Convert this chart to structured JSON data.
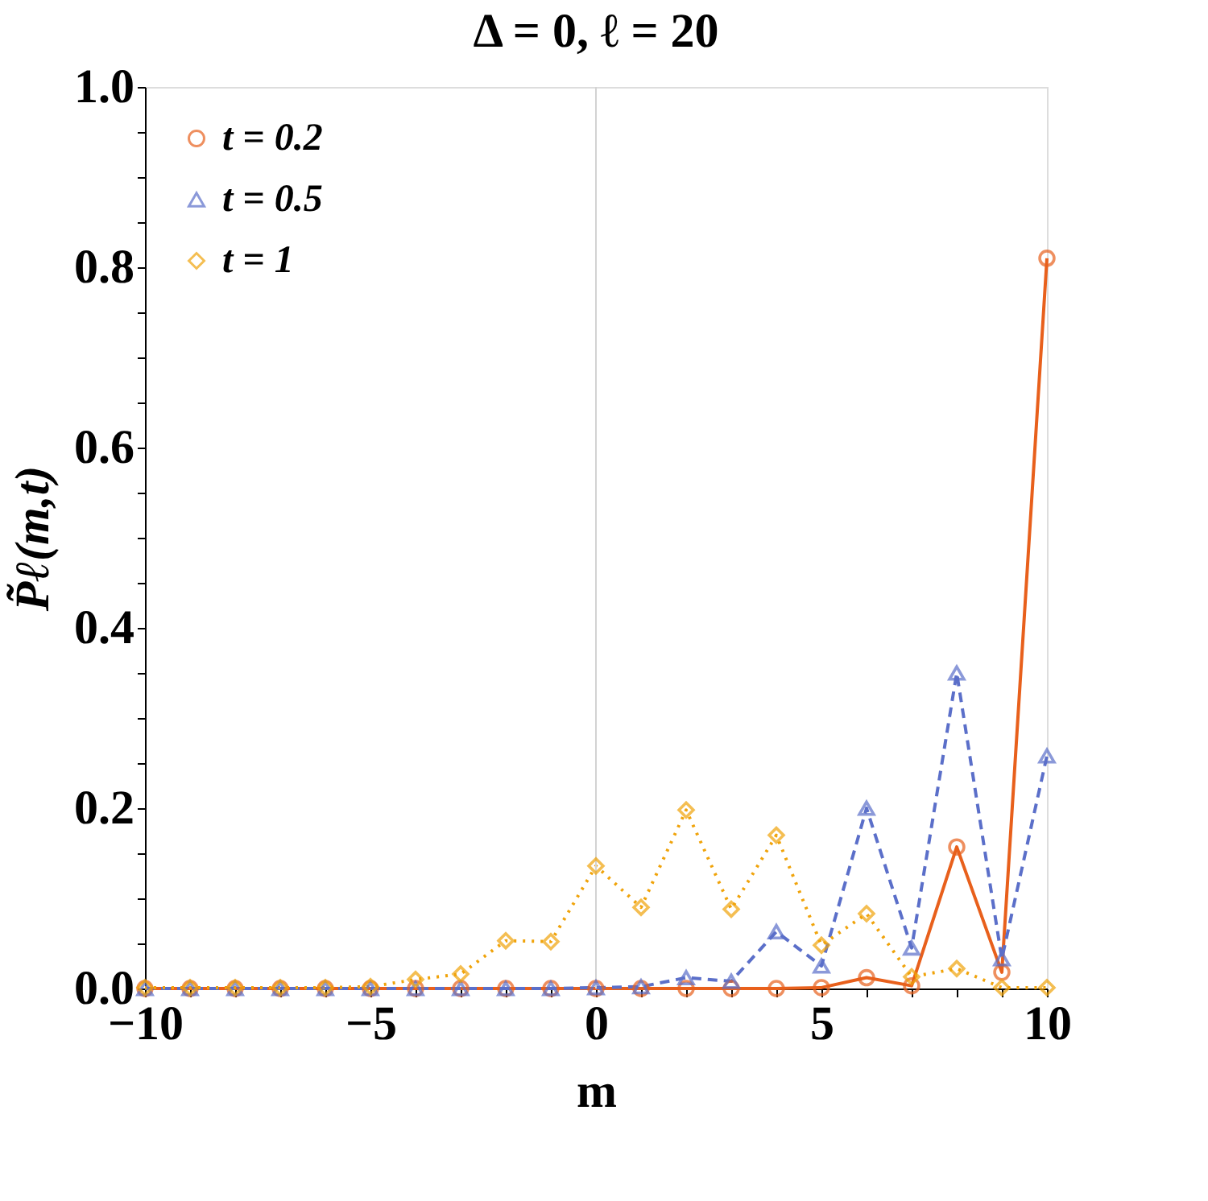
{
  "chart_data": {
    "type": "line",
    "title": "Δ = 0,   ℓ = 20",
    "xlabel": "m",
    "ylabel": "P̃ℓ(m,t)",
    "x": [
      -10,
      -9,
      -8,
      -7,
      -6,
      -5,
      -4,
      -3,
      -2,
      -1,
      0,
      1,
      2,
      3,
      4,
      5,
      6,
      7,
      8,
      9,
      10
    ],
    "series": [
      {
        "name": "t = 0.2",
        "color": "#e8601c",
        "marker": "circle",
        "line_style": "solid",
        "values": [
          0,
          0,
          0,
          0,
          0,
          0,
          0,
          0,
          0,
          0,
          0,
          0,
          0,
          0,
          0,
          0.001,
          0.012,
          0.003,
          0.157,
          0.018,
          0.81
        ]
      },
      {
        "name": "t = 0.5",
        "color": "#5b6fc9",
        "marker": "triangle",
        "line_style": "dashed",
        "values": [
          0,
          0,
          0,
          0,
          0,
          0,
          0,
          0,
          0,
          0,
          0.001,
          0.002,
          0.012,
          0.008,
          0.063,
          0.025,
          0.2,
          0.045,
          0.35,
          0.033,
          0.258
        ]
      },
      {
        "name": "t = 1",
        "color": "#f0a30a",
        "marker": "diamond",
        "line_style": "dotted",
        "values": [
          0.001,
          0.001,
          0.001,
          0.001,
          0.001,
          0.002,
          0.01,
          0.016,
          0.053,
          0.052,
          0.136,
          0.09,
          0.198,
          0.088,
          0.17,
          0.048,
          0.083,
          0.013,
          0.022,
          0.001,
          0.001
        ]
      }
    ],
    "xlim": [
      -10,
      10
    ],
    "xticks": [
      {
        "value": -10,
        "label": "−10"
      },
      {
        "value": -9,
        "label": null
      },
      {
        "value": -8,
        "label": null
      },
      {
        "value": -7,
        "label": null
      },
      {
        "value": -6,
        "label": null
      },
      {
        "value": -5,
        "label": "−5"
      },
      {
        "value": -4,
        "label": null
      },
      {
        "value": -3,
        "label": null
      },
      {
        "value": -2,
        "label": null
      },
      {
        "value": -1,
        "label": null
      },
      {
        "value": 0,
        "label": "0"
      },
      {
        "value": 1,
        "label": null
      },
      {
        "value": 2,
        "label": null
      },
      {
        "value": 3,
        "label": null
      },
      {
        "value": 4,
        "label": null
      },
      {
        "value": 5,
        "label": "5"
      },
      {
        "value": 6,
        "label": null
      },
      {
        "value": 7,
        "label": null
      },
      {
        "value": 8,
        "label": null
      },
      {
        "value": 9,
        "label": null
      },
      {
        "value": 10,
        "label": "10"
      }
    ],
    "ylim": [
      0,
      1
    ],
    "yticks": [
      {
        "value": 0,
        "label": "0.0"
      },
      {
        "value": 0.05,
        "label": null
      },
      {
        "value": 0.1,
        "label": null
      },
      {
        "value": 0.15,
        "label": null
      },
      {
        "value": 0.2,
        "label": "0.2"
      },
      {
        "value": 0.25,
        "label": null
      },
      {
        "value": 0.3,
        "label": null
      },
      {
        "value": 0.35,
        "label": null
      },
      {
        "value": 0.4,
        "label": "0.4"
      },
      {
        "value": 0.45,
        "label": null
      },
      {
        "value": 0.5,
        "label": null
      },
      {
        "value": 0.55,
        "label": null
      },
      {
        "value": 0.6,
        "label": "0.6"
      },
      {
        "value": 0.65,
        "label": null
      },
      {
        "value": 0.7,
        "label": null
      },
      {
        "value": 0.75,
        "label": null
      },
      {
        "value": 0.8,
        "label": "0.8"
      },
      {
        "value": 0.85,
        "label": null
      },
      {
        "value": 0.9,
        "label": null
      },
      {
        "value": 0.95,
        "label": null
      },
      {
        "value": 1,
        "label": "1.0"
      }
    ],
    "ref_lines": [
      {
        "axis": "x",
        "value": 0,
        "color": "#d3d3d3"
      }
    ],
    "grid": false,
    "legend": "top left"
  }
}
